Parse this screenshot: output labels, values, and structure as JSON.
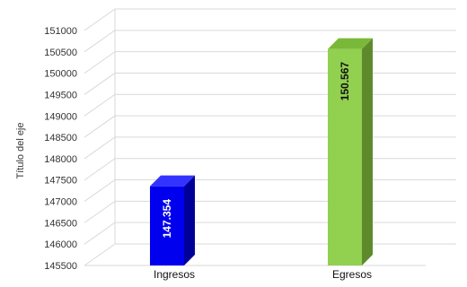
{
  "chart_data": {
    "type": "bar",
    "title": "",
    "xlabel": "",
    "ylabel": "Título del eje",
    "categories": [
      "Ingresos",
      "Egresos"
    ],
    "values": [
      147354,
      150567
    ],
    "data_labels": [
      "147.354",
      "150.567"
    ],
    "ylim": [
      145500,
      151000
    ],
    "ytick_step": 500,
    "yticks": [
      "145500",
      "146000",
      "146500",
      "147000",
      "147500",
      "148000",
      "148500",
      "149000",
      "149500",
      "150000",
      "150500",
      "151000"
    ],
    "grid": true,
    "legend": "none",
    "three_d": true,
    "colors": {
      "series_fronts": [
        "#0000ee",
        "#92d050"
      ],
      "series_sides": [
        "#000099",
        "#5f8a2c"
      ],
      "series_tops": [
        "#3333ff",
        "#7ab83a"
      ],
      "label_colors": [
        "#ffffff",
        "#111111"
      ],
      "grid": "#d9d9d9"
    }
  }
}
